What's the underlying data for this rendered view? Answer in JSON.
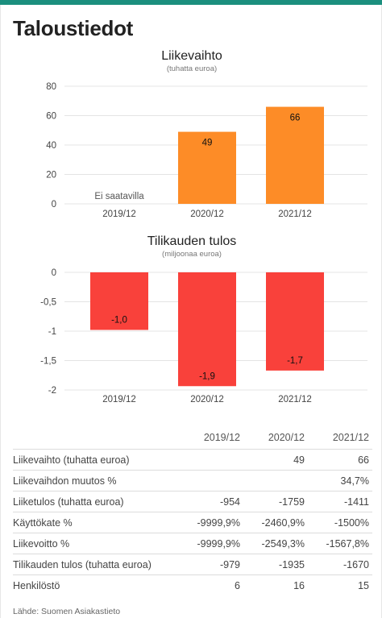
{
  "page": {
    "title": "Taloustiedot"
  },
  "colors": {
    "accent": "#1b8f7e",
    "revenue_bar": "#fd8c27",
    "result_bar": "#f9413b"
  },
  "chart_data": [
    {
      "type": "bar",
      "title": "Liikevaihto",
      "subtitle": "(tuhatta euroa)",
      "categories": [
        "2019/12",
        "2020/12",
        "2021/12"
      ],
      "values": [
        null,
        49,
        66
      ],
      "value_labels": [
        "",
        "49",
        "66"
      ],
      "missing_label": "Ei saatavilla",
      "ylim": [
        0,
        80
      ],
      "yticks": [
        0,
        20,
        40,
        60,
        80
      ],
      "ytick_labels": [
        "0",
        "20",
        "40",
        "60",
        "80"
      ],
      "grid": true,
      "color": "#fd8c27"
    },
    {
      "type": "bar",
      "title": "Tilikauden tulos",
      "subtitle": "(miljoonaa euroa)",
      "categories": [
        "2019/12",
        "2020/12",
        "2021/12"
      ],
      "values": [
        -0.979,
        -1.935,
        -1.67
      ],
      "value_labels": [
        "-1,0",
        "-1,9",
        "-1,7"
      ],
      "ylim": [
        -2,
        0
      ],
      "yticks": [
        0,
        -0.5,
        -1,
        -1.5,
        -2
      ],
      "ytick_labels": [
        "0",
        "-0,5",
        "-1",
        "-1,5",
        "-2"
      ],
      "grid": true,
      "color": "#f9413b"
    }
  ],
  "table": {
    "headers": [
      "",
      "2019/12",
      "2020/12",
      "2021/12"
    ],
    "rows": [
      [
        "Liikevaihto (tuhatta euroa)",
        "",
        "49",
        "66"
      ],
      [
        "Liikevaihdon muutos %",
        "",
        "",
        "34,7%"
      ],
      [
        "Liiketulos (tuhatta euroa)",
        "-954",
        "-1759",
        "-1411"
      ],
      [
        "Käyttökate %",
        "-9999,9%",
        "-2460,9%",
        "-1500%"
      ],
      [
        "Liikevoitto %",
        "-9999,9%",
        "-2549,3%",
        "-1567,8%"
      ],
      [
        "Tilikauden tulos (tuhatta euroa)",
        "-979",
        "-1935",
        "-1670"
      ],
      [
        "Henkilöstö",
        "6",
        "16",
        "15"
      ]
    ]
  },
  "source": "Lähde: Suomen Asiakastieto"
}
